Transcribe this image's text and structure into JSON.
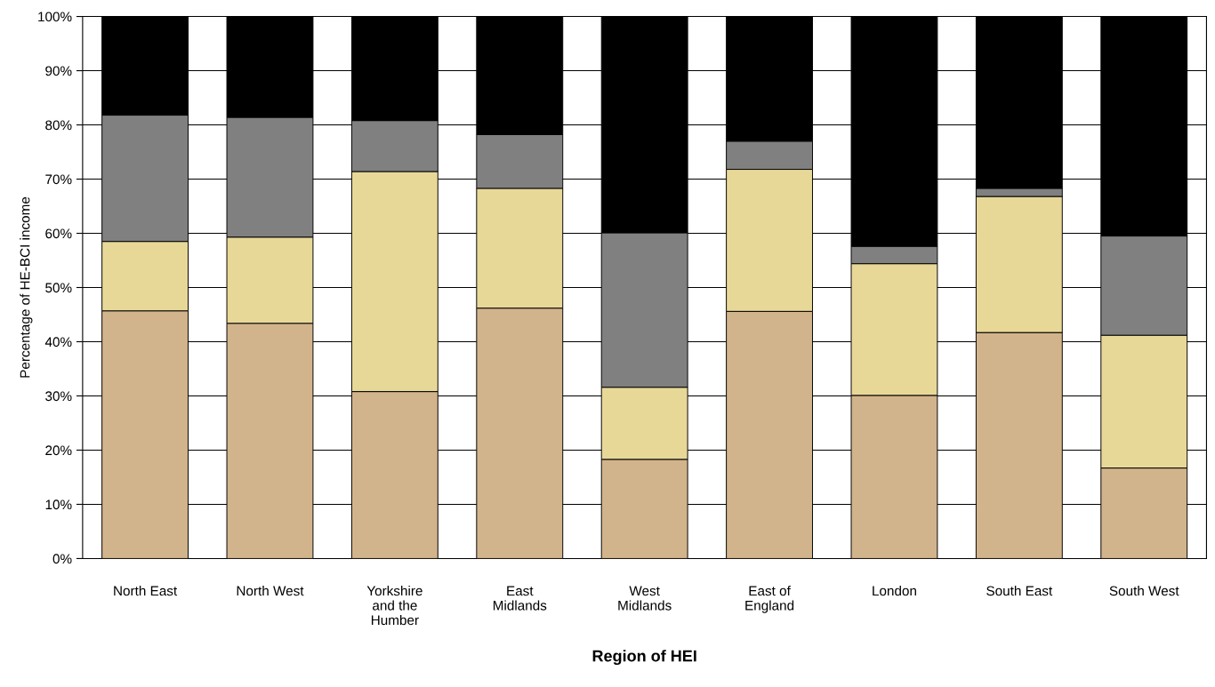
{
  "chart_data": {
    "type": "bar",
    "stacked": true,
    "xlabel": "Region of HEI",
    "ylabel": "Percentage of HE-BCI income",
    "categories": [
      "North East",
      "North West",
      "Yorkshire\nand the\nHumber",
      "East\nMidlands",
      "West\nMidlands",
      "East of\nEngland",
      "London",
      "South East",
      "South West"
    ],
    "series": [
      {
        "color": "#d2b48c",
        "values": [
          45.7,
          43.4,
          30.8,
          46.2,
          18.3,
          45.6,
          30.1,
          41.7,
          16.7
        ]
      },
      {
        "color": "#e8d898",
        "values": [
          12.8,
          15.9,
          40.6,
          22.1,
          13.3,
          26.2,
          24.3,
          25.1,
          24.5
        ]
      },
      {
        "color": "#808080",
        "values": [
          23.3,
          22.1,
          9.4,
          9.9,
          28.5,
          5.2,
          3.2,
          1.5,
          18.3
        ]
      },
      {
        "color": "#000000",
        "values": [
          18.2,
          18.6,
          19.2,
          21.8,
          39.9,
          23.0,
          42.4,
          31.7,
          40.5
        ]
      }
    ],
    "ylim": [
      0,
      100
    ],
    "yticks": [
      {
        "value": 0,
        "label": "0%"
      },
      {
        "value": 10,
        "label": "10%"
      },
      {
        "value": 20,
        "label": "20%"
      },
      {
        "value": 30,
        "label": "30%"
      },
      {
        "value": 40,
        "label": "40%"
      },
      {
        "value": 50,
        "label": "50%"
      },
      {
        "value": 60,
        "label": "60%"
      },
      {
        "value": 70,
        "label": "70%"
      },
      {
        "value": 80,
        "label": "80%"
      },
      {
        "value": 90,
        "label": "90%"
      },
      {
        "value": 100,
        "label": "100%"
      }
    ],
    "grid": "y"
  }
}
